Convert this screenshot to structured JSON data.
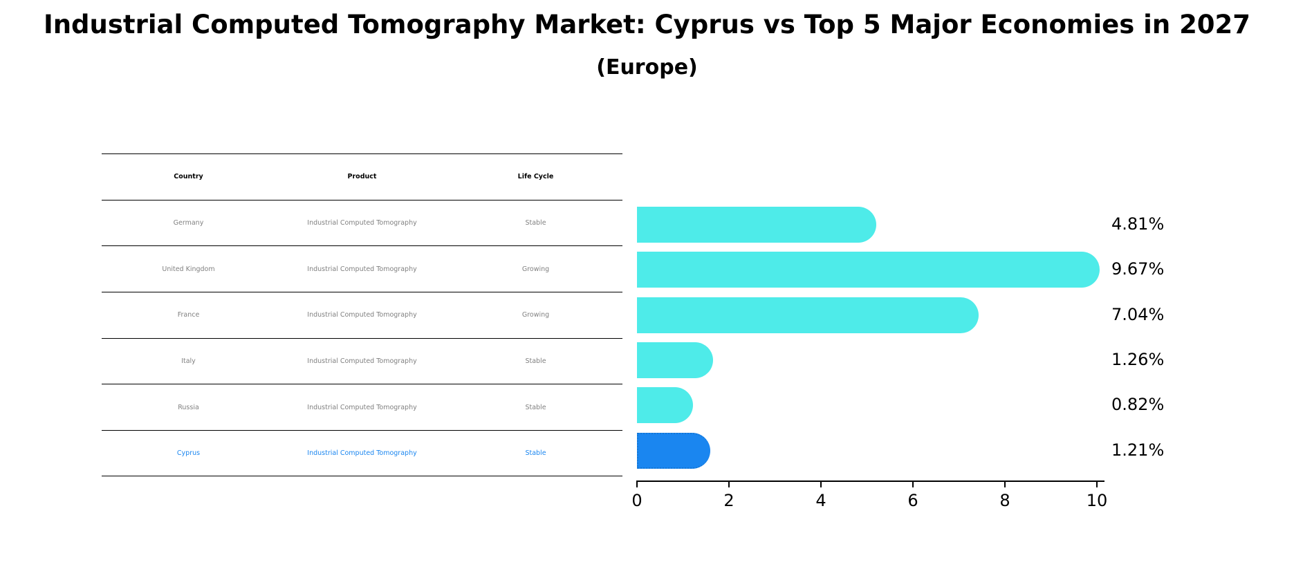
{
  "header": {
    "title": "Industrial Computed Tomography Market: Cyprus vs Top 5 Major Economies in 2027",
    "subtitle": "(Europe)"
  },
  "table": {
    "columns": [
      "Country",
      "Product",
      "Life Cycle"
    ],
    "rows": [
      [
        "Germany",
        "Industrial Computed Tomography",
        "Stable"
      ],
      [
        "United Kingdom",
        "Industrial Computed Tomography",
        "Growing"
      ],
      [
        "France",
        "Industrial Computed Tomography",
        "Growing"
      ],
      [
        "Italy",
        "Industrial Computed Tomography",
        "Stable"
      ],
      [
        "Russia",
        "Industrial Computed Tomography",
        "Stable"
      ],
      [
        "Cyprus",
        "Industrial Computed Tomography",
        "Stable"
      ]
    ]
  },
  "colors": {
    "bar": "#4eebe9",
    "highlight_bar": "#1a86f0",
    "highlight_text": "#1a86f0",
    "table_text": "#808080"
  },
  "chart_data": {
    "type": "bar",
    "orientation": "horizontal",
    "title": "Industrial Computed Tomography Market: Cyprus vs Top 5 Major Economies in 2027",
    "subtitle": "(Europe)",
    "categories": [
      "Germany",
      "United Kingdom",
      "France",
      "Italy",
      "Russia",
      "Cyprus"
    ],
    "values": [
      4.81,
      9.67,
      7.04,
      1.26,
      0.82,
      1.21
    ],
    "value_labels": [
      "4.81%",
      "9.67%",
      "7.04%",
      "1.26%",
      "0.82%",
      "1.21%"
    ],
    "highlight": "Cyprus",
    "xlabel": "",
    "ylabel": "",
    "xlim": [
      0,
      10
    ],
    "xticks": [
      "0",
      "2",
      "4",
      "6",
      "8",
      "10"
    ],
    "grid": false,
    "legend": null
  }
}
